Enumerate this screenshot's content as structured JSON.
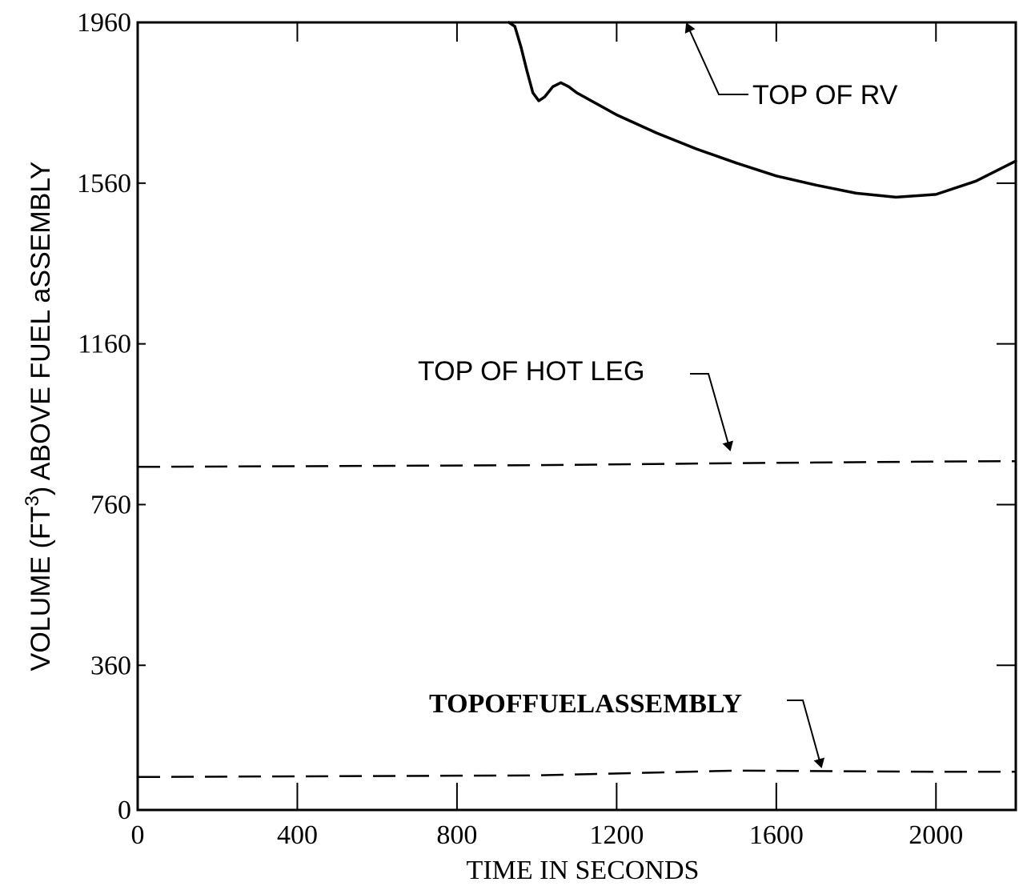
{
  "chart_data": {
    "type": "line",
    "xlabel": "TIME IN SECONDS",
    "ylabel_parts": {
      "pre": "VOLUME (FT",
      "sup": "3",
      "post": ") ABOVE FUEL aSSEMBLY"
    },
    "xlim": [
      0,
      2200
    ],
    "ylim": [
      0,
      1960
    ],
    "x_ticks": [
      0,
      400,
      800,
      1200,
      1600,
      2000
    ],
    "x_tick_labels": [
      "0",
      "400",
      "800",
      "1200",
      "1600",
      "2000"
    ],
    "y_ticks": [
      0,
      360,
      760,
      1160,
      1560,
      1960
    ],
    "y_tick_labels": [
      "0",
      "360",
      "760",
      "1160",
      "1560",
      "1960"
    ],
    "grid": false,
    "series": [
      {
        "style": "solid",
        "x": [
          930,
          945,
          960,
          975,
          990,
          1005,
          1020,
          1040,
          1060,
          1080,
          1100,
          1200,
          1300,
          1400,
          1500,
          1600,
          1700,
          1800,
          1900,
          2000,
          2100,
          2200
        ],
        "y": [
          1960,
          1950,
          1900,
          1840,
          1785,
          1765,
          1775,
          1800,
          1810,
          1800,
          1785,
          1730,
          1685,
          1645,
          1610,
          1578,
          1555,
          1535,
          1525,
          1532,
          1565,
          1615
        ]
      },
      {
        "style": "dashed",
        "x": [
          0,
          500,
          1000,
          1500,
          2000,
          2200
        ],
        "y": [
          854,
          856,
          858,
          863,
          867,
          868
        ]
      },
      {
        "style": "dashed",
        "x": [
          0,
          500,
          1000,
          1500,
          2000,
          2200
        ],
        "y": [
          82,
          84,
          86,
          98,
          95,
          95
        ]
      }
    ],
    "annotations": [
      {
        "text": "TOP OF RV"
      },
      {
        "text": "TOP OF HOT LEG"
      },
      {
        "text": "TOPOFFUELASSEMBLY"
      }
    ]
  }
}
